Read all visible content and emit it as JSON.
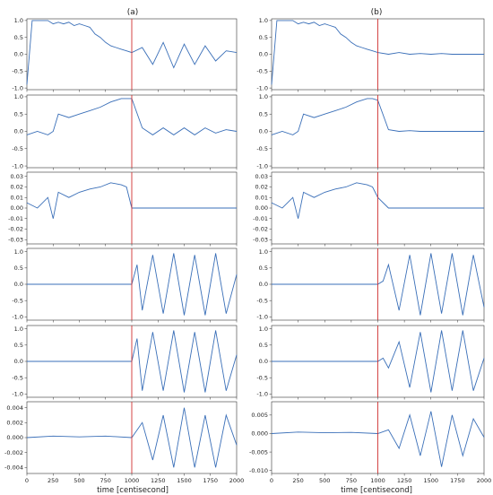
{
  "columns": [
    {
      "title": "(a)",
      "xlabel": "time [centisecond]"
    },
    {
      "title": "(b)",
      "xlabel": "time [centisecond]"
    }
  ],
  "chart_data": [
    {
      "type": "line",
      "title": "(a)",
      "xlim": [
        0,
        2000
      ],
      "xticks": [
        0,
        250,
        500,
        750,
        1000,
        1250,
        1500,
        1750,
        2000
      ],
      "event_x": 1000,
      "panels": [
        {
          "ylim": [
            -1.05,
            1.05
          ],
          "yticks": [
            "1.0",
            "0.5",
            "0.0",
            "-0.5",
            "-1.0"
          ],
          "ytick_values": [
            1,
            0.5,
            0,
            -0.5,
            -1
          ],
          "series": [
            {
              "x": [
                0,
                50,
                100,
                150,
                200,
                250,
                300,
                350,
                400,
                450,
                500,
                550,
                600,
                650,
                700,
                750,
                800,
                850,
                900,
                950,
                1000,
                1100,
                1200,
                1300,
                1400,
                1500,
                1600,
                1700,
                1800,
                1900,
                2000
              ],
              "y": [
                -0.9,
                1.0,
                1.0,
                1.0,
                1.0,
                0.9,
                0.95,
                0.9,
                0.95,
                0.85,
                0.9,
                0.85,
                0.8,
                0.6,
                0.5,
                0.35,
                0.25,
                0.2,
                0.15,
                0.1,
                0.05,
                0.2,
                -0.3,
                0.35,
                -0.4,
                0.3,
                -0.3,
                0.25,
                -0.2,
                0.1,
                0.05
              ]
            }
          ]
        },
        {
          "ylim": [
            -1.05,
            1.05
          ],
          "yticks": [
            "1.0",
            "0.5",
            "0.0",
            "-0.5",
            "-1.0"
          ],
          "ytick_values": [
            1,
            0.5,
            0,
            -0.5,
            -1
          ],
          "series": [
            {
              "x": [
                0,
                100,
                200,
                250,
                300,
                400,
                500,
                600,
                700,
                800,
                900,
                950,
                1000,
                1100,
                1200,
                1300,
                1400,
                1500,
                1600,
                1700,
                1800,
                1900,
                2000
              ],
              "y": [
                -0.1,
                0.0,
                -0.1,
                0.0,
                0.5,
                0.4,
                0.5,
                0.6,
                0.7,
                0.85,
                0.95,
                0.95,
                0.95,
                0.1,
                -0.1,
                0.1,
                -0.1,
                0.1,
                -0.1,
                0.1,
                -0.05,
                0.05,
                0.0
              ]
            }
          ]
        },
        {
          "ylim": [
            -0.034,
            0.034
          ],
          "yticks": [
            "0.03",
            "0.02",
            "0.01",
            "0.00",
            "-0.01",
            "-0.02",
            "-0.03"
          ],
          "ytick_values": [
            0.03,
            0.02,
            0.01,
            0,
            -0.01,
            -0.02,
            -0.03
          ],
          "series": [
            {
              "x": [
                0,
                100,
                200,
                250,
                300,
                400,
                500,
                600,
                700,
                800,
                900,
                950,
                1000,
                1100,
                1200,
                1300,
                1400,
                1500,
                1600,
                1700,
                1800,
                1900,
                2000
              ],
              "y": [
                0.005,
                0.0,
                0.01,
                -0.01,
                0.015,
                0.01,
                0.015,
                0.018,
                0.02,
                0.024,
                0.022,
                0.02,
                0.0,
                0.0,
                0.0,
                0.0,
                0.0,
                0.0,
                0.0,
                0.0,
                0.0,
                0.0,
                0.0
              ]
            }
          ]
        },
        {
          "ylim": [
            -1.1,
            1.1
          ],
          "yticks": [
            "1.0",
            "0.5",
            "0.0",
            "-0.5",
            "-1.0"
          ],
          "ytick_values": [
            1,
            0.5,
            0,
            -0.5,
            -1
          ],
          "series": [
            {
              "x": [
                0,
                250,
                500,
                750,
                1000,
                1050,
                1100,
                1200,
                1300,
                1400,
                1500,
                1600,
                1700,
                1800,
                1900,
                2000
              ],
              "y": [
                0,
                0,
                0,
                0,
                0,
                0.6,
                -0.8,
                0.9,
                -0.9,
                0.95,
                -0.95,
                0.9,
                -0.95,
                0.95,
                -0.9,
                0.3
              ]
            }
          ]
        },
        {
          "ylim": [
            -1.1,
            1.1
          ],
          "yticks": [
            "1.0",
            "0.5",
            "0.0",
            "-0.5",
            "-1.0"
          ],
          "ytick_values": [
            1,
            0.5,
            0,
            -0.5,
            -1
          ],
          "series": [
            {
              "x": [
                0,
                250,
                500,
                750,
                1000,
                1050,
                1100,
                1200,
                1300,
                1400,
                1500,
                1600,
                1700,
                1800,
                1900,
                2000
              ],
              "y": [
                0,
                0,
                0,
                0,
                0,
                0.7,
                -0.9,
                0.9,
                -0.9,
                0.95,
                -0.95,
                0.9,
                -0.95,
                0.95,
                -0.9,
                0.2
              ]
            }
          ]
        },
        {
          "ylim": [
            -0.0048,
            0.0048
          ],
          "yticks": [
            "0.004",
            "0.002",
            "0.000",
            "-0.002",
            "-0.004"
          ],
          "ytick_values": [
            0.004,
            0.002,
            0,
            -0.002,
            -0.004
          ],
          "series": [
            {
              "x": [
                0,
                250,
                500,
                750,
                1000,
                1100,
                1200,
                1300,
                1400,
                1500,
                1600,
                1700,
                1800,
                1900,
                2000
              ],
              "y": [
                0,
                0.0002,
                0.0001,
                0.0002,
                0,
                0.002,
                -0.003,
                0.003,
                -0.004,
                0.004,
                -0.004,
                0.003,
                -0.004,
                0.003,
                -0.001
              ]
            }
          ]
        }
      ]
    },
    {
      "type": "line",
      "title": "(b)",
      "xlim": [
        0,
        2000
      ],
      "xticks": [
        0,
        250,
        500,
        750,
        1000,
        1250,
        1500,
        1750,
        2000
      ],
      "event_x": 1000,
      "panels": [
        {
          "ylim": [
            -1.05,
            1.05
          ],
          "yticks": [
            "1.0",
            "0.5",
            "0.0",
            "-0.5",
            "-1.0"
          ],
          "ytick_values": [
            1,
            0.5,
            0,
            -0.5,
            -1
          ],
          "series": [
            {
              "x": [
                0,
                50,
                100,
                150,
                200,
                250,
                300,
                350,
                400,
                450,
                500,
                550,
                600,
                650,
                700,
                750,
                800,
                850,
                900,
                950,
                1000,
                1100,
                1200,
                1300,
                1400,
                1500,
                1600,
                1700,
                1800,
                1900,
                2000
              ],
              "y": [
                -0.9,
                1.0,
                1.0,
                1.0,
                1.0,
                0.9,
                0.95,
                0.9,
                0.95,
                0.85,
                0.9,
                0.85,
                0.8,
                0.6,
                0.5,
                0.35,
                0.25,
                0.2,
                0.15,
                0.1,
                0.05,
                0.0,
                0.05,
                0.0,
                0.02,
                0.0,
                0.02,
                0.0,
                0.0,
                0.0,
                0.0
              ]
            }
          ]
        },
        {
          "ylim": [
            -1.05,
            1.05
          ],
          "yticks": [
            "1.0",
            "0.5",
            "0.0",
            "-0.5",
            "-1.0"
          ],
          "ytick_values": [
            1,
            0.5,
            0,
            -0.5,
            -1
          ],
          "series": [
            {
              "x": [
                0,
                100,
                200,
                250,
                300,
                400,
                500,
                600,
                700,
                800,
                900,
                950,
                1000,
                1100,
                1200,
                1300,
                1400,
                1500,
                1600,
                1700,
                1800,
                1900,
                2000
              ],
              "y": [
                -0.1,
                0.0,
                -0.1,
                0.0,
                0.5,
                0.4,
                0.5,
                0.6,
                0.7,
                0.85,
                0.95,
                0.95,
                0.9,
                0.05,
                0.0,
                0.02,
                0.0,
                0.0,
                0.0,
                0.0,
                0.0,
                0.0,
                0.0
              ]
            }
          ]
        },
        {
          "ylim": [
            -0.034,
            0.034
          ],
          "yticks": [
            "0.03",
            "0.02",
            "0.01",
            "0.00",
            "-0.01",
            "-0.02",
            "-0.03"
          ],
          "ytick_values": [
            0.03,
            0.02,
            0.01,
            0,
            -0.01,
            -0.02,
            -0.03
          ],
          "series": [
            {
              "x": [
                0,
                100,
                200,
                250,
                300,
                400,
                500,
                600,
                700,
                800,
                900,
                950,
                1000,
                1100,
                1200,
                1300,
                1400,
                1500,
                1600,
                1700,
                1800,
                1900,
                2000
              ],
              "y": [
                0.005,
                0.0,
                0.01,
                -0.01,
                0.015,
                0.01,
                0.015,
                0.018,
                0.02,
                0.024,
                0.022,
                0.02,
                0.01,
                0.0,
                0.0,
                0.0,
                0.0,
                0.0,
                0.0,
                0.0,
                0.0,
                0.0,
                0.0
              ]
            }
          ]
        },
        {
          "ylim": [
            -1.1,
            1.1
          ],
          "yticks": [
            "1.0",
            "0.5",
            "0.0",
            "-0.5",
            "-1.0"
          ],
          "ytick_values": [
            1,
            0.5,
            0,
            -0.5,
            -1
          ],
          "series": [
            {
              "x": [
                0,
                250,
                500,
                750,
                1000,
                1050,
                1100,
                1200,
                1300,
                1400,
                1500,
                1600,
                1700,
                1800,
                1900,
                2000
              ],
              "y": [
                0,
                0,
                0,
                0,
                0,
                0.1,
                0.6,
                -0.8,
                0.9,
                -0.95,
                0.95,
                -0.9,
                0.95,
                -0.95,
                0.9,
                -0.7
              ]
            }
          ]
        },
        {
          "ylim": [
            -1.1,
            1.1
          ],
          "yticks": [
            "1.0",
            "0.5",
            "0.0",
            "-0.5",
            "-1.0"
          ],
          "ytick_values": [
            1,
            0.5,
            0,
            -0.5,
            -1
          ],
          "series": [
            {
              "x": [
                0,
                250,
                500,
                750,
                1000,
                1050,
                1100,
                1200,
                1300,
                1400,
                1500,
                1600,
                1700,
                1800,
                1900,
                2000
              ],
              "y": [
                0,
                0,
                0,
                0,
                0,
                0.1,
                -0.2,
                0.6,
                -0.8,
                0.9,
                -0.95,
                0.95,
                -0.9,
                0.95,
                -0.9,
                0.1
              ]
            }
          ]
        },
        {
          "ylim": [
            -0.0108,
            0.0086
          ],
          "yticks": [
            "0.005",
            "0.000",
            "-0.005",
            "-0.010"
          ],
          "ytick_values": [
            0.005,
            0,
            -0.005,
            -0.01
          ],
          "series": [
            {
              "x": [
                0,
                250,
                500,
                750,
                1000,
                1100,
                1200,
                1300,
                1400,
                1500,
                1600,
                1700,
                1800,
                1900,
                2000
              ],
              "y": [
                0,
                0.0004,
                0.0002,
                0.0003,
                0,
                0.001,
                -0.004,
                0.005,
                -0.006,
                0.006,
                -0.009,
                0.005,
                -0.006,
                0.004,
                -0.001
              ]
            }
          ]
        }
      ]
    }
  ]
}
